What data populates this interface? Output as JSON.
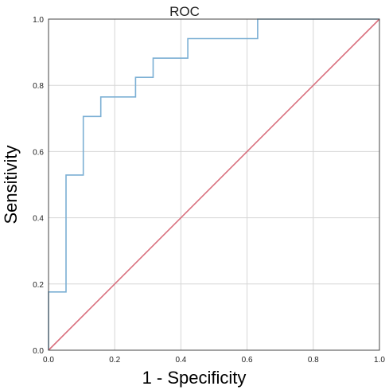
{
  "chart_data": {
    "type": "line",
    "title": "ROC",
    "xlabel": "1 - Specificity",
    "ylabel": "Sensitivity",
    "xlim": [
      0,
      1
    ],
    "ylim": [
      0,
      1
    ],
    "x_ticks": [
      "0.0",
      "0.2",
      "0.4",
      "0.6",
      "0.8",
      "1.0"
    ],
    "y_ticks": [
      "0.0",
      "0.2",
      "0.4",
      "0.6",
      "0.8",
      "1.0"
    ],
    "grid": true,
    "series": [
      {
        "color": "#7BAFD4",
        "step": true,
        "points": [
          [
            0.0,
            0.0
          ],
          [
            0.0,
            0.176
          ],
          [
            0.053,
            0.176
          ],
          [
            0.053,
            0.529
          ],
          [
            0.105,
            0.529
          ],
          [
            0.105,
            0.706
          ],
          [
            0.158,
            0.706
          ],
          [
            0.158,
            0.765
          ],
          [
            0.263,
            0.765
          ],
          [
            0.263,
            0.824
          ],
          [
            0.316,
            0.824
          ],
          [
            0.316,
            0.882
          ],
          [
            0.421,
            0.882
          ],
          [
            0.421,
            0.941
          ],
          [
            0.632,
            0.941
          ],
          [
            0.632,
            1.0
          ],
          [
            1.0,
            1.0
          ]
        ]
      },
      {
        "color": "#D9707E",
        "step": false,
        "points": [
          [
            0.0,
            0.0
          ],
          [
            1.0,
            1.0
          ]
        ]
      }
    ]
  }
}
